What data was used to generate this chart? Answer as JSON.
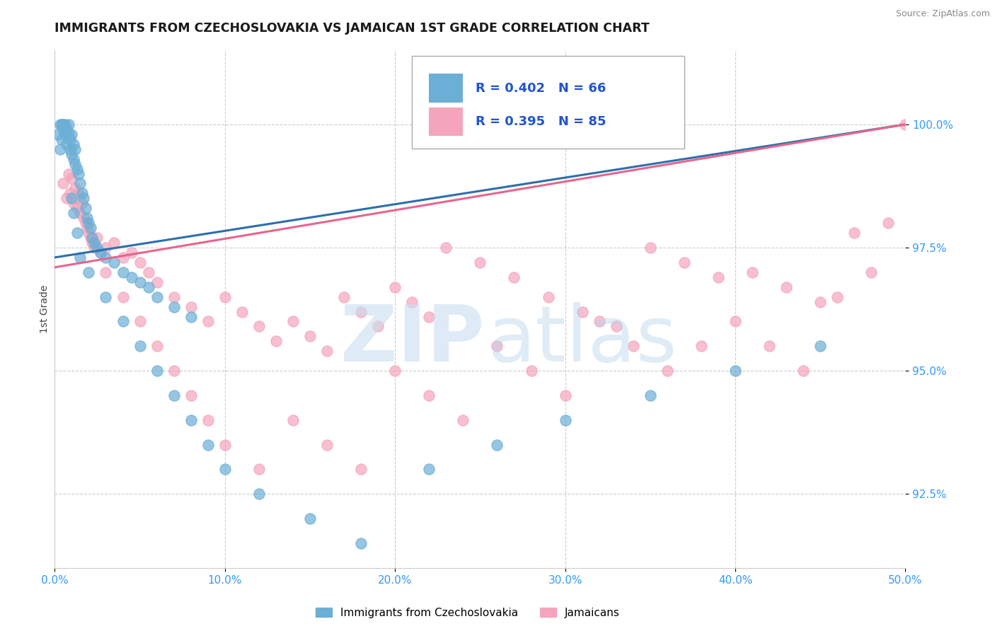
{
  "title": "IMMIGRANTS FROM CZECHOSLOVAKIA VS JAMAICAN 1ST GRADE CORRELATION CHART",
  "source_text": "Source: ZipAtlas.com",
  "ylabel": "1st Grade",
  "xlim": [
    0.0,
    50.0
  ],
  "ylim": [
    91.0,
    101.5
  ],
  "yticks": [
    92.5,
    95.0,
    97.5,
    100.0
  ],
  "ytick_labels": [
    "92.5%",
    "95.0%",
    "97.5%",
    "100.0%"
  ],
  "xticks": [
    0.0,
    10.0,
    20.0,
    30.0,
    40.0,
    50.0
  ],
  "xtick_labels": [
    "0.0%",
    "10.0%",
    "20.0%",
    "30.0%",
    "40.0%",
    "50.0%"
  ],
  "blue_label": "Immigrants from Czechoslovakia",
  "pink_label": "Jamaicans",
  "blue_R": 0.402,
  "blue_N": 66,
  "pink_R": 0.395,
  "pink_N": 85,
  "blue_color": "#6baed6",
  "pink_color": "#f4a5bb",
  "blue_line_color": "#2c6fad",
  "pink_line_color": "#e8658a",
  "blue_line_x0": 0.0,
  "blue_line_y0": 97.3,
  "blue_line_x1": 50.0,
  "blue_line_y1": 100.0,
  "pink_line_x0": 0.0,
  "pink_line_y0": 97.1,
  "pink_line_x1": 50.0,
  "pink_line_y1": 100.0,
  "blue_scatter_x": [
    0.2,
    0.3,
    0.3,
    0.4,
    0.4,
    0.5,
    0.5,
    0.5,
    0.6,
    0.6,
    0.7,
    0.7,
    0.8,
    0.8,
    0.9,
    0.9,
    1.0,
    1.0,
    1.1,
    1.1,
    1.2,
    1.2,
    1.3,
    1.4,
    1.5,
    1.6,
    1.7,
    1.8,
    1.9,
    2.0,
    2.1,
    2.2,
    2.3,
    2.5,
    2.7,
    3.0,
    3.5,
    4.0,
    4.5,
    5.0,
    5.5,
    6.0,
    7.0,
    8.0,
    1.0,
    1.1,
    1.3,
    1.5,
    2.0,
    3.0,
    4.0,
    5.0,
    6.0,
    7.0,
    8.0,
    9.0,
    10.0,
    12.0,
    15.0,
    18.0,
    22.0,
    26.0,
    30.0,
    35.0,
    40.0,
    45.0
  ],
  "blue_scatter_y": [
    99.8,
    100.0,
    99.5,
    100.0,
    99.7,
    99.9,
    100.0,
    100.0,
    99.8,
    100.0,
    99.6,
    99.9,
    99.8,
    100.0,
    99.5,
    99.7,
    99.4,
    99.8,
    99.3,
    99.6,
    99.2,
    99.5,
    99.1,
    99.0,
    98.8,
    98.6,
    98.5,
    98.3,
    98.1,
    98.0,
    97.9,
    97.7,
    97.6,
    97.5,
    97.4,
    97.3,
    97.2,
    97.0,
    96.9,
    96.8,
    96.7,
    96.5,
    96.3,
    96.1,
    98.5,
    98.2,
    97.8,
    97.3,
    97.0,
    96.5,
    96.0,
    95.5,
    95.0,
    94.5,
    94.0,
    93.5,
    93.0,
    92.5,
    92.0,
    91.5,
    93.0,
    93.5,
    94.0,
    94.5,
    95.0,
    95.5
  ],
  "pink_scatter_x": [
    0.5,
    0.7,
    0.8,
    0.9,
    1.0,
    1.1,
    1.2,
    1.3,
    1.4,
    1.5,
    1.6,
    1.7,
    1.8,
    1.9,
    2.0,
    2.1,
    2.2,
    2.3,
    2.5,
    2.7,
    3.0,
    3.5,
    4.0,
    4.5,
    5.0,
    5.5,
    6.0,
    7.0,
    8.0,
    9.0,
    10.0,
    11.0,
    12.0,
    13.0,
    14.0,
    15.0,
    16.0,
    17.0,
    18.0,
    19.0,
    20.0,
    21.0,
    22.0,
    23.0,
    25.0,
    27.0,
    29.0,
    31.0,
    33.0,
    35.0,
    37.0,
    39.0,
    41.0,
    43.0,
    45.0,
    47.0,
    49.0,
    50.0,
    3.0,
    4.0,
    5.0,
    6.0,
    7.0,
    8.0,
    9.0,
    10.0,
    12.0,
    14.0,
    16.0,
    18.0,
    20.0,
    22.0,
    24.0,
    26.0,
    28.0,
    30.0,
    32.0,
    34.0,
    36.0,
    38.0,
    40.0,
    42.0,
    44.0,
    46.0,
    48.0
  ],
  "pink_scatter_y": [
    98.8,
    98.5,
    99.0,
    98.6,
    98.9,
    98.4,
    98.7,
    98.3,
    98.6,
    98.2,
    98.4,
    98.1,
    98.0,
    97.9,
    97.8,
    97.7,
    97.6,
    97.5,
    97.7,
    97.4,
    97.5,
    97.6,
    97.3,
    97.4,
    97.2,
    97.0,
    96.8,
    96.5,
    96.3,
    96.0,
    96.5,
    96.2,
    95.9,
    95.6,
    96.0,
    95.7,
    95.4,
    96.5,
    96.2,
    95.9,
    96.7,
    96.4,
    96.1,
    97.5,
    97.2,
    96.9,
    96.5,
    96.2,
    95.9,
    97.5,
    97.2,
    96.9,
    97.0,
    96.7,
    96.4,
    97.8,
    98.0,
    100.0,
    97.0,
    96.5,
    96.0,
    95.5,
    95.0,
    94.5,
    94.0,
    93.5,
    93.0,
    94.0,
    93.5,
    93.0,
    95.0,
    94.5,
    94.0,
    95.5,
    95.0,
    94.5,
    96.0,
    95.5,
    95.0,
    95.5,
    96.0,
    95.5,
    95.0,
    96.5,
    97.0
  ]
}
